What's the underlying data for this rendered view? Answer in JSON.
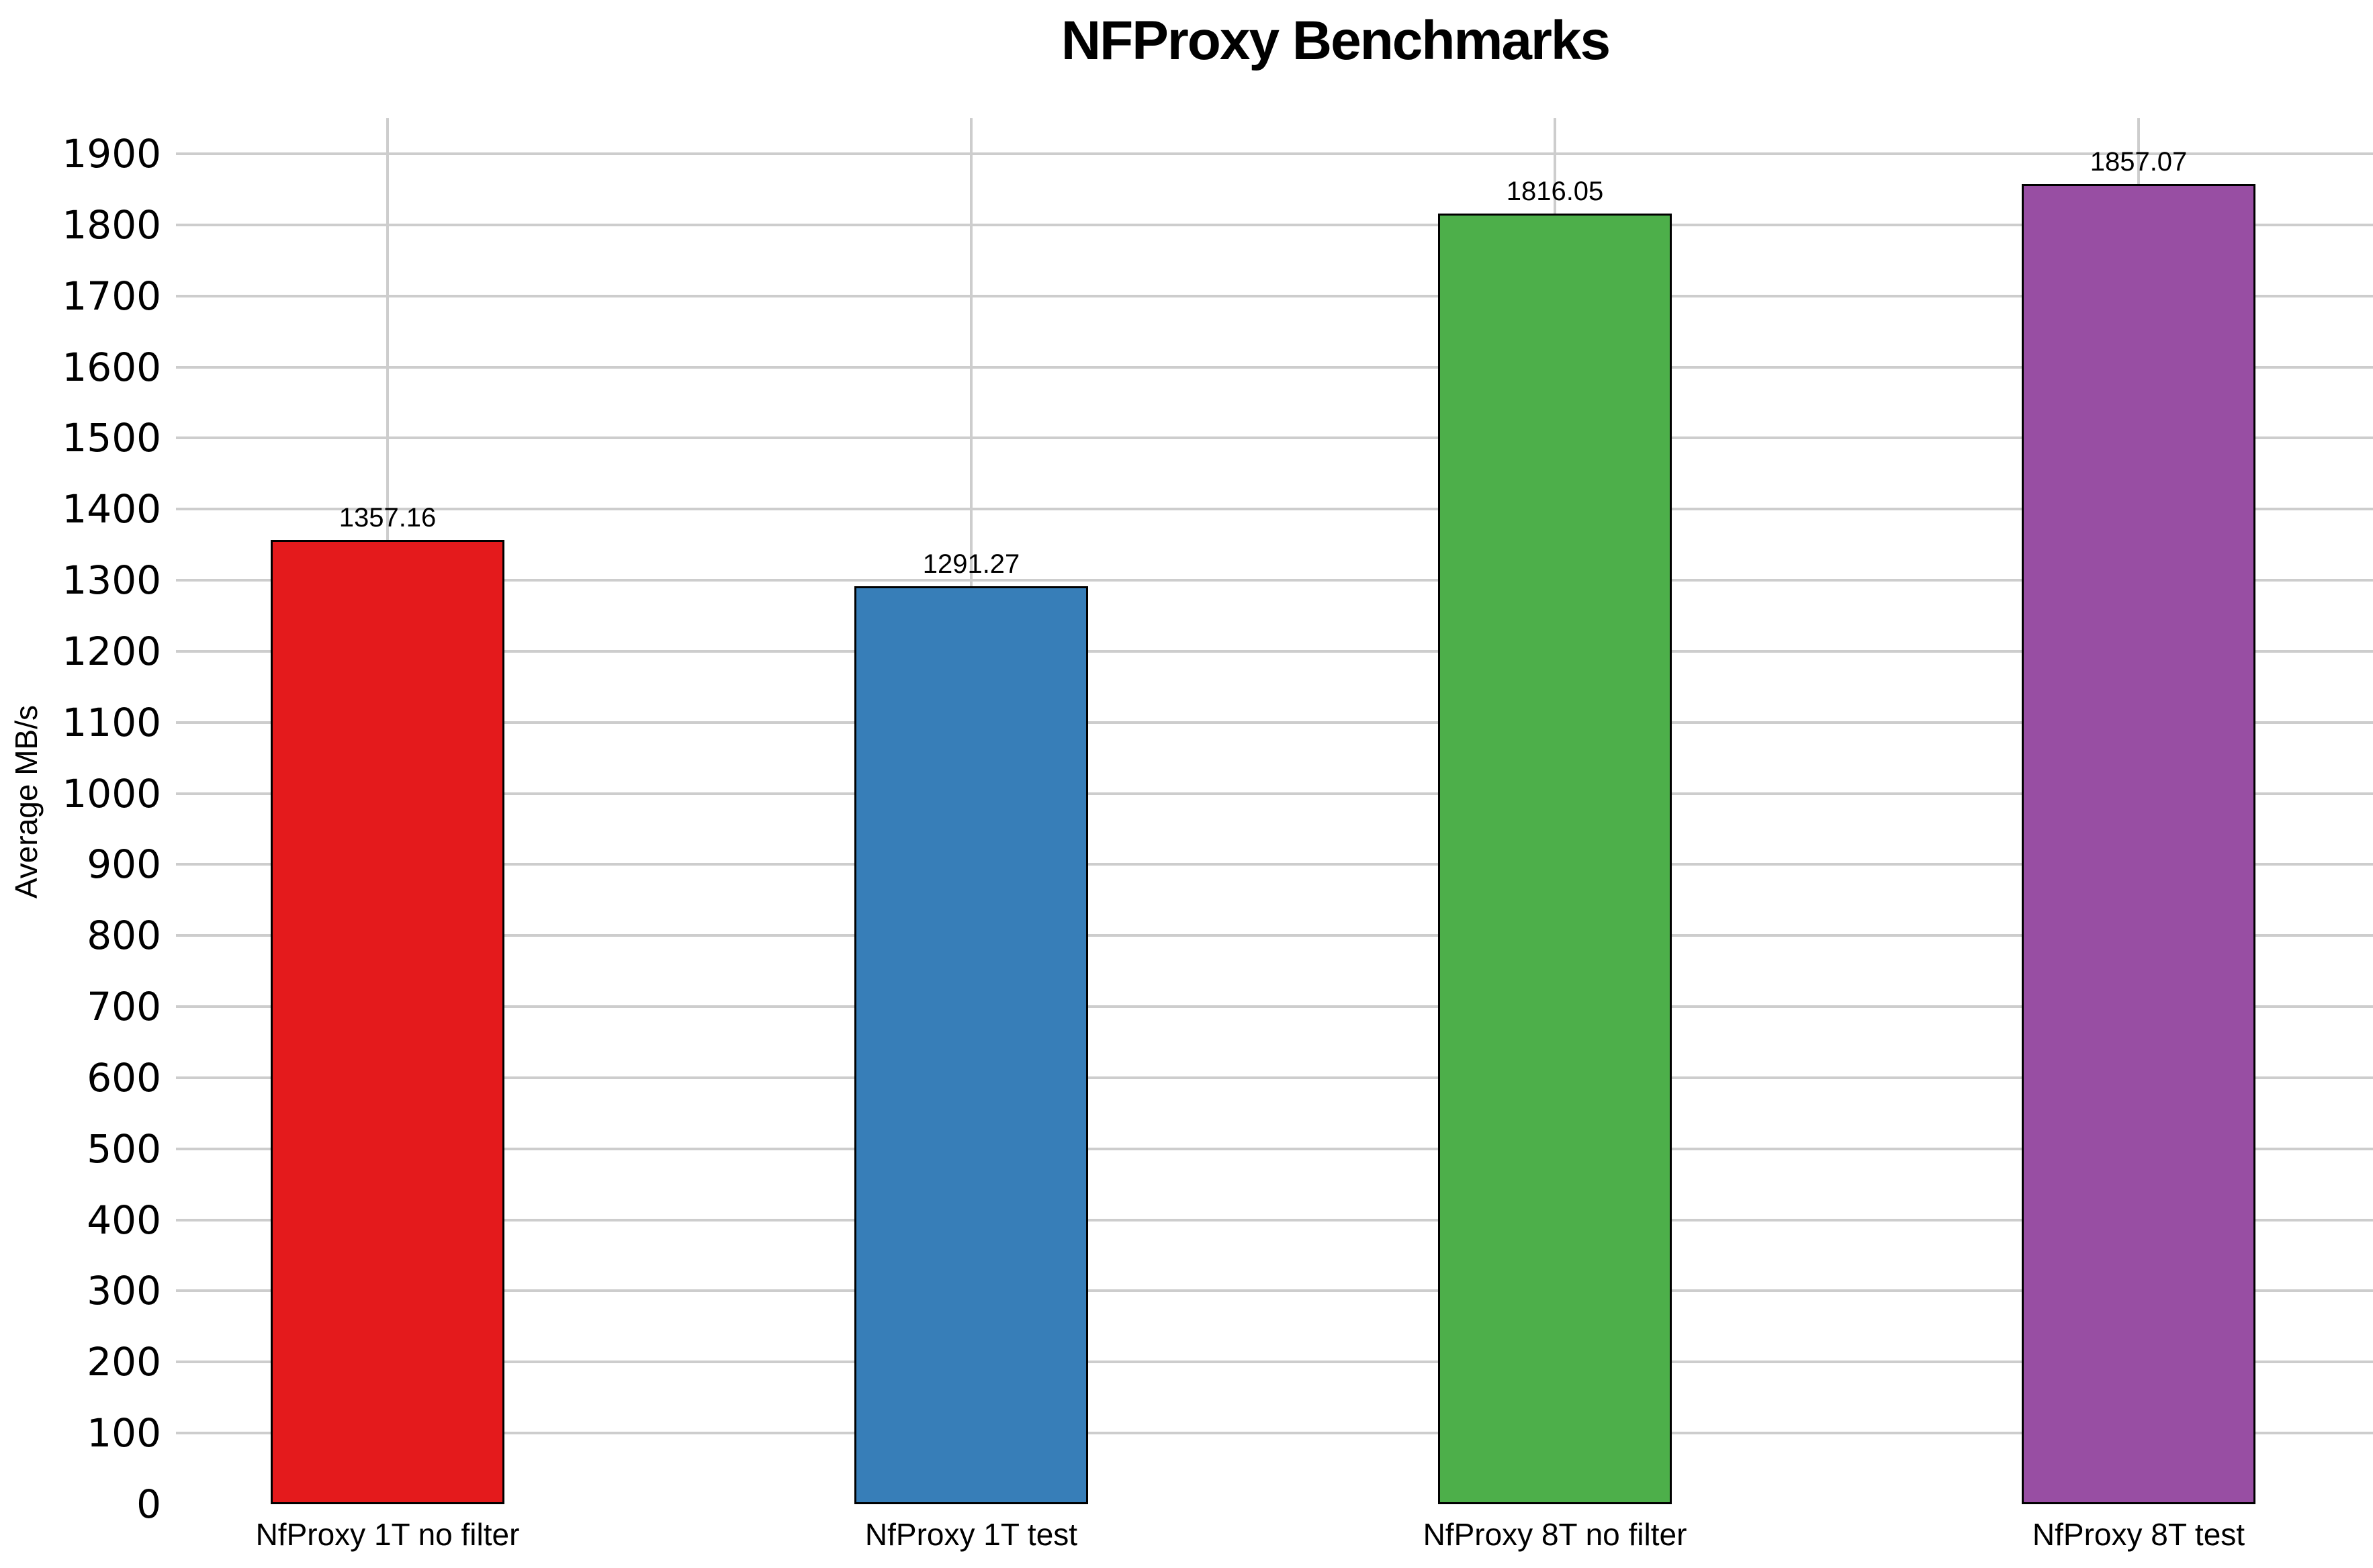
{
  "chart_data": {
    "type": "bar",
    "title": "NFProxy Benchmarks",
    "xlabel": "",
    "ylabel": "Average MB/s",
    "categories": [
      "NfProxy 1T no filter",
      "NfProxy 1T test",
      "NfProxy 8T no filter",
      "NfProxy 8T test"
    ],
    "values": [
      1357.16,
      1291.27,
      1816.05,
      1857.07
    ],
    "value_labels": [
      "1357.16",
      "1291.27",
      "1816.05",
      "1857.07"
    ],
    "bar_colors": [
      "#e41a1c",
      "#377eb8",
      "#4daf4a",
      "#984ea3"
    ],
    "bar_edge_color": "#000000",
    "yticks": [
      0,
      100,
      200,
      300,
      400,
      500,
      600,
      700,
      800,
      900,
      1000,
      1100,
      1200,
      1300,
      1400,
      1500,
      1600,
      1700,
      1800,
      1900
    ],
    "ylim": [
      0,
      1950
    ],
    "grid": true,
    "grid_color": "#cdcdcd",
    "background": "#ffffff",
    "legend_position": "none"
  }
}
